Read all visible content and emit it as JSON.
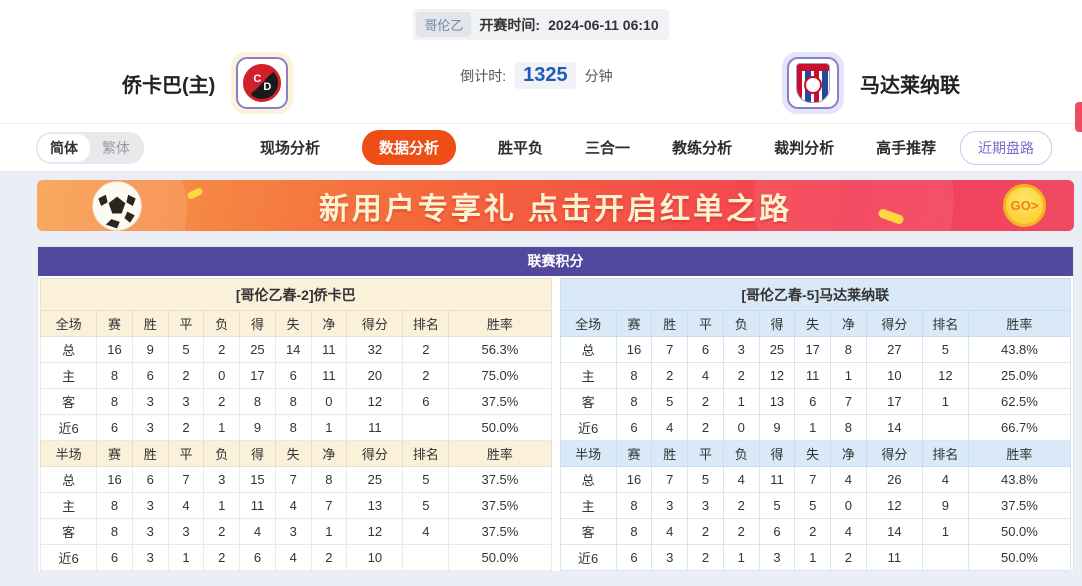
{
  "header": {
    "league": "哥伦乙",
    "kickoff_label": "开赛时间:",
    "kickoff_time": "2024-06-11 06:10",
    "home_team": "侨卡巴(主)",
    "away_team": "马达莱纳联",
    "home_logo_letters": {
      "c": "C",
      "d": "D"
    },
    "countdown_label": "倒计时:",
    "countdown_value": "1325",
    "countdown_unit": "分钟"
  },
  "nav": {
    "lang": {
      "simplified": "简体",
      "traditional": "繁体",
      "active": "简体"
    },
    "tabs": [
      {
        "label": "现场分析",
        "active": false
      },
      {
        "label": "数据分析",
        "active": true
      },
      {
        "label": "胜平负",
        "active": false
      },
      {
        "label": "三合一",
        "active": false
      },
      {
        "label": "教练分析",
        "active": false
      },
      {
        "label": "裁判分析",
        "active": false
      },
      {
        "label": "高手推荐",
        "active": false
      }
    ],
    "recent_button": "近期盘路"
  },
  "banner": {
    "text": "新用户专享礼  点击开启红单之路",
    "go_label": "GO>"
  },
  "standings": {
    "title": "联赛积分",
    "columns_full": [
      "全场",
      "赛",
      "胜",
      "平",
      "负",
      "得",
      "失",
      "净",
      "得分",
      "排名",
      "胜率"
    ],
    "columns_half": [
      "半场",
      "赛",
      "胜",
      "平",
      "负",
      "得",
      "失",
      "净",
      "得分",
      "排名",
      "胜率"
    ],
    "home": {
      "header": "[哥伦乙春-2]侨卡巴",
      "full_rows": [
        [
          "总",
          "16",
          "9",
          "5",
          "2",
          "25",
          "14",
          "11",
          "32",
          "2",
          "56.3%"
        ],
        [
          "主",
          "8",
          "6",
          "2",
          "0",
          "17",
          "6",
          "11",
          "20",
          "2",
          "75.0%"
        ],
        [
          "客",
          "8",
          "3",
          "3",
          "2",
          "8",
          "8",
          "0",
          "12",
          "6",
          "37.5%"
        ],
        [
          "近6",
          "6",
          "3",
          "2",
          "1",
          "9",
          "8",
          "1",
          "11",
          "",
          "50.0%"
        ]
      ],
      "half_rows": [
        [
          "总",
          "16",
          "6",
          "7",
          "3",
          "15",
          "7",
          "8",
          "25",
          "5",
          "37.5%"
        ],
        [
          "主",
          "8",
          "3",
          "4",
          "1",
          "11",
          "4",
          "7",
          "13",
          "5",
          "37.5%"
        ],
        [
          "客",
          "8",
          "3",
          "3",
          "2",
          "4",
          "3",
          "1",
          "12",
          "4",
          "37.5%"
        ],
        [
          "近6",
          "6",
          "3",
          "1",
          "2",
          "6",
          "4",
          "2",
          "10",
          "",
          "50.0%"
        ]
      ]
    },
    "away": {
      "header": "[哥伦乙春-5]马达莱纳联",
      "full_rows": [
        [
          "总",
          "16",
          "7",
          "6",
          "3",
          "25",
          "17",
          "8",
          "27",
          "5",
          "43.8%"
        ],
        [
          "主",
          "8",
          "2",
          "4",
          "2",
          "12",
          "11",
          "1",
          "10",
          "12",
          "25.0%"
        ],
        [
          "客",
          "8",
          "5",
          "2",
          "1",
          "13",
          "6",
          "7",
          "17",
          "1",
          "62.5%"
        ],
        [
          "近6",
          "6",
          "4",
          "2",
          "0",
          "9",
          "1",
          "8",
          "14",
          "",
          "66.7%"
        ]
      ],
      "half_rows": [
        [
          "总",
          "16",
          "7",
          "5",
          "4",
          "11",
          "7",
          "4",
          "26",
          "4",
          "43.8%"
        ],
        [
          "主",
          "8",
          "3",
          "3",
          "2",
          "5",
          "5",
          "0",
          "12",
          "9",
          "37.5%"
        ],
        [
          "客",
          "8",
          "4",
          "2",
          "2",
          "6",
          "2",
          "4",
          "14",
          "1",
          "50.0%"
        ],
        [
          "近6",
          "6",
          "3",
          "2",
          "1",
          "3",
          "1",
          "2",
          "11",
          "",
          "50.0%"
        ]
      ]
    }
  },
  "colors": {
    "accent_orange": "#ed4e16",
    "title_purple": "#52489e",
    "home_header_bg": "#fbf1da",
    "away_header_bg": "#d9e9f7",
    "home_label_red": "#d40000",
    "away_label_blue": "#0000d4",
    "countdown_blue": "#1f5bb5",
    "banner_gradient": [
      "#f79d49",
      "#f43d55"
    ],
    "recent_btn_purple": "#7b6ac8"
  }
}
